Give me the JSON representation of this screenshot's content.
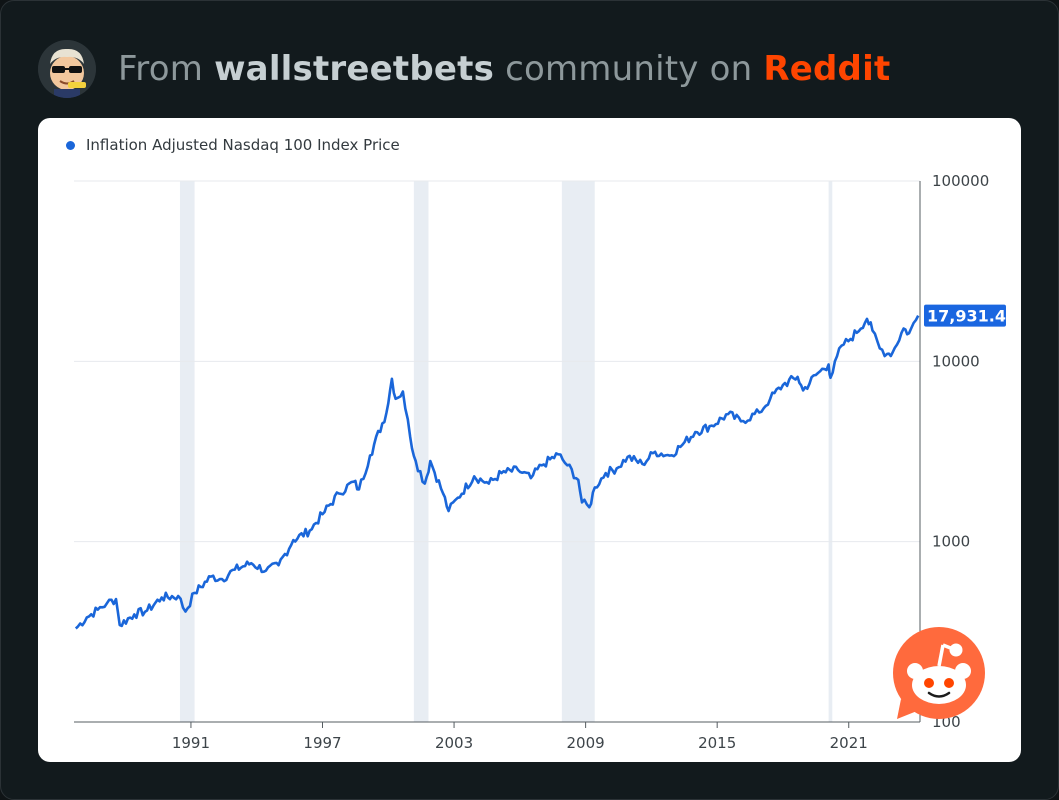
{
  "header": {
    "prefix": "From",
    "community": "wallstreetbets",
    "middle": "community on",
    "brand": "Reddit",
    "brand_color": "#ff4500"
  },
  "avatar_icon": "sunglasses-avatar-icon",
  "corner_icon": "reddit-snoo-icon",
  "chart_data": {
    "type": "line",
    "title": "",
    "legend_position": "top-left",
    "series": [
      {
        "name": "Inflation Adjusted Nasdaq 100 Index Price",
        "color": "#1a66d9",
        "points": [
          [
            "1985-10",
            330
          ],
          [
            "1986-04",
            380
          ],
          [
            "1986-10",
            420
          ],
          [
            "1987-03",
            455
          ],
          [
            "1987-08",
            480
          ],
          [
            "1987-10",
            345
          ],
          [
            "1988-06",
            395
          ],
          [
            "1989-01",
            415
          ],
          [
            "1989-09",
            490
          ],
          [
            "1990-06",
            500
          ],
          [
            "1990-10",
            410
          ],
          [
            "1991-03",
            520
          ],
          [
            "1991-12",
            640
          ],
          [
            "1992-06",
            620
          ],
          [
            "1993-01",
            700
          ],
          [
            "1993-10",
            760
          ],
          [
            "1994-06",
            690
          ],
          [
            "1995-01",
            740
          ],
          [
            "1995-09",
            1020
          ],
          [
            "1996-06",
            1150
          ],
          [
            "1997-01",
            1420
          ],
          [
            "1997-10",
            1850
          ],
          [
            "1998-06",
            2150
          ],
          [
            "1998-09",
            1950
          ],
          [
            "1999-03",
            3000
          ],
          [
            "1999-12",
            5200
          ],
          [
            "2000-03",
            8000
          ],
          [
            "2000-05",
            6200
          ],
          [
            "2000-09",
            6800
          ],
          [
            "2001-01",
            3800
          ],
          [
            "2001-04",
            2800
          ],
          [
            "2001-09",
            2100
          ],
          [
            "2001-12",
            2800
          ],
          [
            "2002-07",
            1850
          ],
          [
            "2002-10",
            1480
          ],
          [
            "2003-03",
            1750
          ],
          [
            "2003-12",
            2300
          ],
          [
            "2004-08",
            2100
          ],
          [
            "2005-03",
            2400
          ],
          [
            "2005-12",
            2500
          ],
          [
            "2006-07",
            2250
          ],
          [
            "2007-01",
            2650
          ],
          [
            "2007-10",
            3050
          ],
          [
            "2008-03",
            2650
          ],
          [
            "2008-09",
            2200
          ],
          [
            "2008-11",
            1650
          ],
          [
            "2009-03",
            1550
          ],
          [
            "2009-06",
            2000
          ],
          [
            "2009-12",
            2400
          ],
          [
            "2010-06",
            2550
          ],
          [
            "2010-12",
            2950
          ],
          [
            "2011-08",
            2700
          ],
          [
            "2012-03",
            3150
          ],
          [
            "2012-11",
            3000
          ],
          [
            "2013-06",
            3450
          ],
          [
            "2014-01",
            4050
          ],
          [
            "2014-10",
            4400
          ],
          [
            "2015-07",
            5100
          ],
          [
            "2016-02",
            4650
          ],
          [
            "2016-12",
            5200
          ],
          [
            "2017-06",
            6200
          ],
          [
            "2018-01",
            7400
          ],
          [
            "2018-09",
            8200
          ],
          [
            "2018-12",
            6900
          ],
          [
            "2019-07",
            8400
          ],
          [
            "2020-02",
            9600
          ],
          [
            "2020-03",
            8100
          ],
          [
            "2020-09",
            12200
          ],
          [
            "2021-02",
            13300
          ],
          [
            "2021-11",
            17200
          ],
          [
            "2022-02",
            14800
          ],
          [
            "2022-06",
            11800
          ],
          [
            "2022-10",
            11000
          ],
          [
            "2023-01",
            11200
          ],
          [
            "2023-07",
            15200
          ],
          [
            "2023-10",
            14300
          ],
          [
            "2024-03",
            17931.44
          ]
        ]
      }
    ],
    "xlim": [
      "1985-09",
      "2024-04"
    ],
    "x_ticks": [
      "1991",
      "1997",
      "2003",
      "2009",
      "2015",
      "2021"
    ],
    "y_scale": "log",
    "ylim": [
      100,
      100000
    ],
    "y_ticks": [
      "100000",
      "10000",
      "1000",
      "100"
    ],
    "y_axis_position": "right",
    "last_value_label": "17,931.44",
    "recessions": [
      [
        "1990-07",
        "1991-03"
      ],
      [
        "2001-03",
        "2001-11"
      ],
      [
        "2007-12",
        "2009-06"
      ],
      [
        "2020-02",
        "2020-04"
      ]
    ],
    "grid": true,
    "colors": {
      "line": "#1a66d9",
      "recession_band": "#e8edf3",
      "grid": "#e7eaee",
      "axis": "#555c61"
    }
  }
}
